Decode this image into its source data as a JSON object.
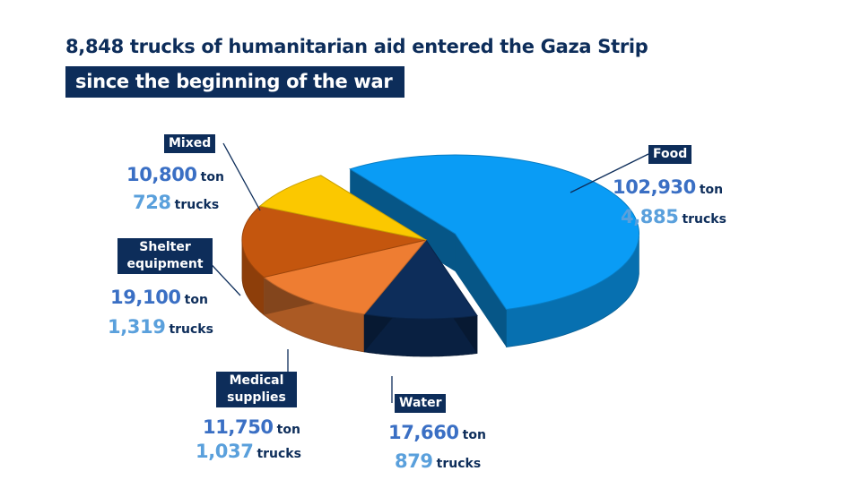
{
  "title": {
    "line1": "8,848 trucks of humanitarian aid entered the Gaza Strip",
    "line2": "since the beginning of the war"
  },
  "chart_data": {
    "type": "pie",
    "title": "8,848 trucks of humanitarian aid entered the Gaza Strip since the beginning of the war",
    "value_units": [
      "ton",
      "trucks"
    ],
    "slices": [
      {
        "label": "Food",
        "ton": "102,930",
        "ton_unit": "ton",
        "trucks": "4,885",
        "trucks_unit": "trucks",
        "value": 4885,
        "color": "#0a9cf5",
        "exploded": true
      },
      {
        "label": "Water",
        "ton": "17,660",
        "ton_unit": "ton",
        "trucks": "879",
        "trucks_unit": "trucks",
        "value": 879,
        "color": "#0d2d5a"
      },
      {
        "label": "Medical supplies",
        "ton": "11,750",
        "ton_unit": "ton",
        "trucks": "1,037",
        "trucks_unit": "trucks",
        "value": 1037,
        "color": "#ee7d32"
      },
      {
        "label": "Shelter equipment",
        "ton": "19,100",
        "ton_unit": "ton",
        "trucks": "1,319",
        "trucks_unit": "trucks",
        "value": 1319,
        "color": "#c4560e"
      },
      {
        "label": "Mixed",
        "ton": "10,800",
        "ton_unit": "ton",
        "trucks": "728",
        "trucks_unit": "trucks",
        "value": 728,
        "color": "#fbc800"
      }
    ]
  }
}
